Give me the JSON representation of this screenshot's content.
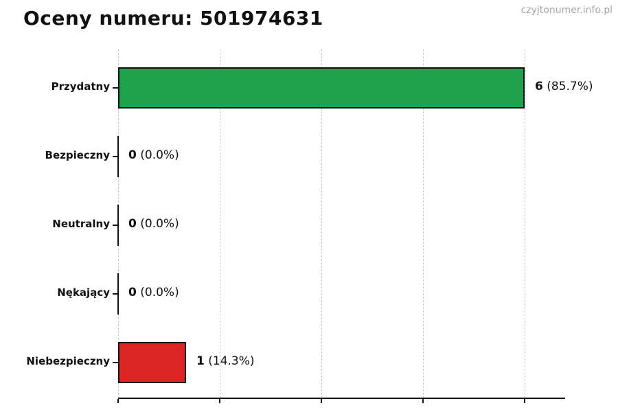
{
  "header": {
    "title": "Oceny numeru: 501974631",
    "watermark": "czyjtonumer.info.pl"
  },
  "chart_data": {
    "type": "bar",
    "orientation": "horizontal",
    "title": "Oceny numeru: 501974631",
    "categories": [
      "Przydatny",
      "Bezpieczny",
      "Neutralny",
      "Nękający",
      "Niebezpieczny"
    ],
    "values": [
      6,
      0,
      0,
      0,
      1
    ],
    "value_labels": [
      {
        "count": "6",
        "percent": "(85.7%)"
      },
      {
        "count": "0",
        "percent": "(0.0%)"
      },
      {
        "count": "0",
        "percent": "(0.0%)"
      },
      {
        "count": "0",
        "percent": "(0.0%)"
      },
      {
        "count": "1",
        "percent": "(14.3%)"
      }
    ],
    "bar_colors": [
      "#1fa24b",
      null,
      null,
      null,
      "#dc2626"
    ],
    "bar_edge_color": "#111111",
    "xlim": [
      0,
      6.6
    ],
    "xticks": [
      0,
      1.5,
      3,
      4.5,
      6
    ],
    "grid": {
      "vertical": true,
      "style": "dashed",
      "color": "#c9c9c9"
    },
    "xlabel": "",
    "ylabel": ""
  }
}
